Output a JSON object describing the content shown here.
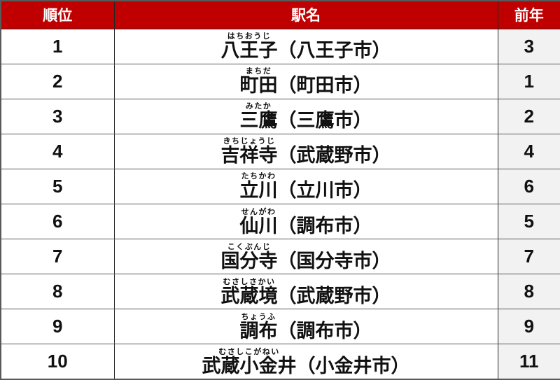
{
  "chart_data": {
    "type": "table",
    "title": "",
    "columns": [
      "順位",
      "駅名",
      "前年"
    ],
    "rows": [
      {
        "rank": "1",
        "furigana": "はちおうじ",
        "name": "八王子",
        "suffix": "（八王子市）",
        "prev": "3"
      },
      {
        "rank": "2",
        "furigana": "まちだ",
        "name": "町田",
        "suffix": "（町田市）",
        "prev": "1"
      },
      {
        "rank": "3",
        "furigana": "みたか",
        "name": "三鷹",
        "suffix": "（三鷹市）",
        "prev": "2"
      },
      {
        "rank": "4",
        "furigana": "きちじょうじ",
        "name": "吉祥寺",
        "suffix": "（武蔵野市）",
        "prev": "4"
      },
      {
        "rank": "5",
        "furigana": "たちかわ",
        "name": "立川",
        "suffix": "（立川市）",
        "prev": "6"
      },
      {
        "rank": "6",
        "furigana": "せんがわ",
        "name": "仙川",
        "suffix": "（調布市）",
        "prev": "5"
      },
      {
        "rank": "7",
        "furigana": "こくぶんじ",
        "name": "国分寺",
        "suffix": "（国分寺市）",
        "prev": "7"
      },
      {
        "rank": "8",
        "furigana": "むさしさかい",
        "name": "武蔵境",
        "suffix": "（武蔵野市）",
        "prev": "8"
      },
      {
        "rank": "9",
        "furigana": "ちょうふ",
        "name": "調布",
        "suffix": "（調布市）",
        "prev": "9"
      },
      {
        "rank": "10",
        "furigana": "むさしこがねい",
        "name": "武蔵小金井",
        "suffix": "（小金井市）",
        "prev": "11"
      }
    ]
  },
  "table": {
    "headers": {
      "rank": "順位",
      "station": "駅名",
      "prev": "前年"
    },
    "colors": {
      "header_bg": "#C00000",
      "header_text": "#FFFFFF",
      "prev_col_bg": "#F2F2F2"
    }
  }
}
